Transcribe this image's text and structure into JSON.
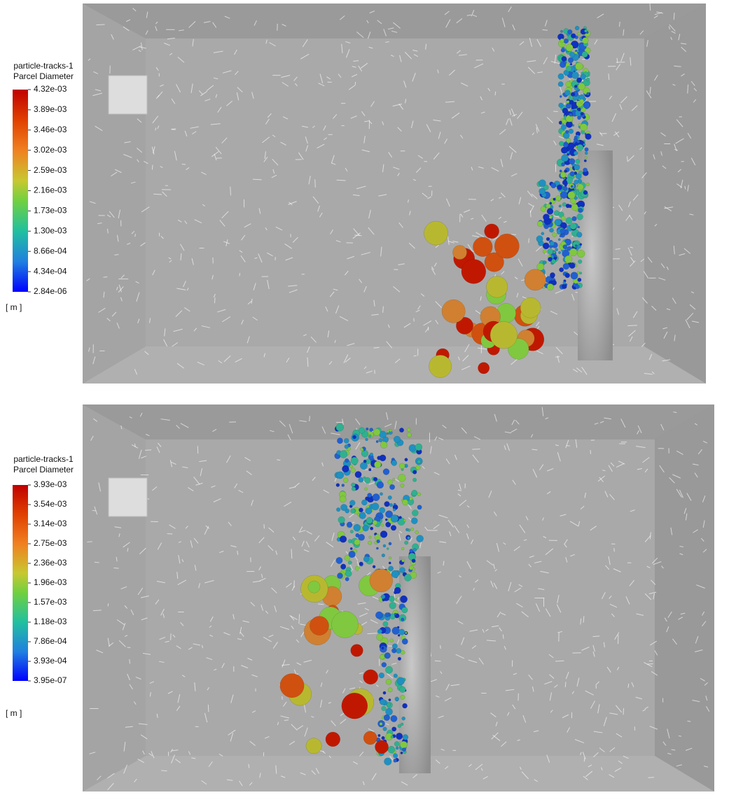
{
  "panels": [
    {
      "legend": {
        "title": [
          "particle-tracks-1",
          "Parcel Diameter"
        ],
        "ticks": [
          "4.32e-03",
          "3.89e-03",
          "3.46e-03",
          "3.02e-03",
          "2.59e-03",
          "2.16e-03",
          "1.73e-03",
          "1.30e-03",
          "8.66e-04",
          "4.34e-04",
          "2.84e-06"
        ],
        "unit": "[ m ]"
      }
    },
    {
      "legend": {
        "title": [
          "particle-tracks-1",
          "Parcel Diameter"
        ],
        "ticks": [
          "3.93e-03",
          "3.54e-03",
          "3.14e-03",
          "2.75e-03",
          "2.36e-03",
          "1.96e-03",
          "1.57e-03",
          "1.18e-03",
          "7.86e-04",
          "3.93e-04",
          "3.95e-07"
        ],
        "unit": "[ m ]"
      }
    }
  ]
}
